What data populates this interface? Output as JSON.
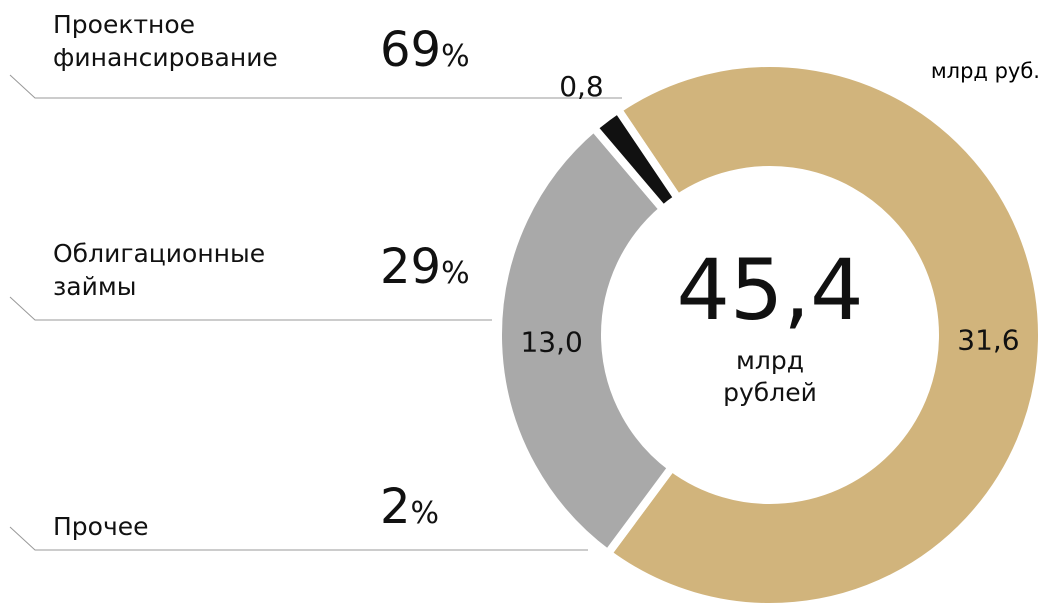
{
  "chart_data": {
    "type": "donut",
    "unit": "млрд руб.",
    "categories": [
      "Проектное финансирование",
      "Облигационные займы",
      "Прочее"
    ],
    "values": [
      31.6,
      13.0,
      0.8
    ],
    "value_labels": [
      "31,6",
      "13,0",
      "0,8"
    ],
    "colors": [
      "#d1b47c",
      "#a9a9a9",
      "#111111"
    ],
    "shares": [
      69,
      29,
      2
    ],
    "share_unit": "%",
    "total": 45.4,
    "total_label": "45,4",
    "total_unit": "млрд рублей"
  }
}
